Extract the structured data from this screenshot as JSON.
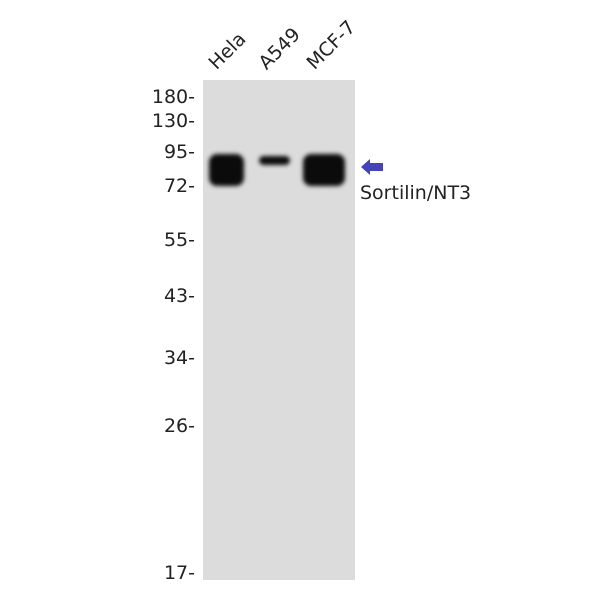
{
  "lanes": [
    "Hela",
    "A549",
    "MCF-7"
  ],
  "markers": [
    "180-",
    "130-",
    "95-",
    "72-",
    "55-",
    "43-",
    "34-",
    "26-",
    "17-"
  ],
  "target": {
    "label": "Sortilin/NT3",
    "arrow_icon": "arrow-left-icon",
    "arrow_color": "#4444b8"
  },
  "colors": {
    "membrane": "#dcdcdc",
    "band": "#0b0b0b"
  }
}
